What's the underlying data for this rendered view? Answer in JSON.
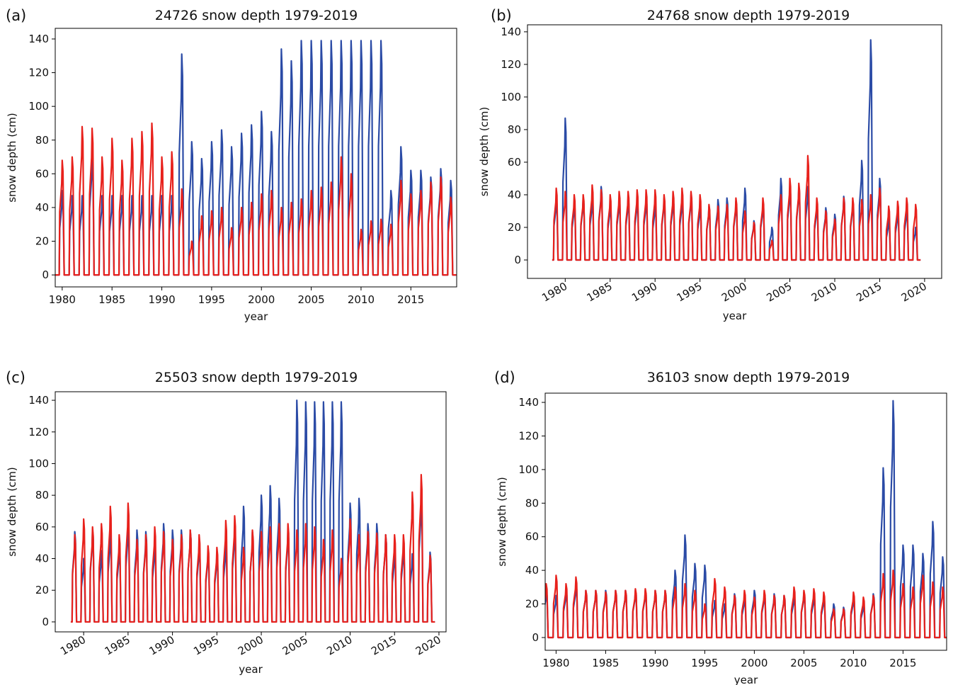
{
  "chart_data": [
    {
      "type": "line",
      "panel_label": "(a)",
      "title": "24726 snow depth 1979-2019",
      "x_label": "year",
      "y_label": "snow depth (cm)",
      "x": [
        1979,
        1980,
        1981,
        1982,
        1983,
        1984,
        1985,
        1986,
        1987,
        1988,
        1989,
        1990,
        1991,
        1992,
        1993,
        1994,
        1995,
        1996,
        1997,
        1998,
        1999,
        2000,
        2001,
        2002,
        2003,
        2004,
        2005,
        2006,
        2007,
        2008,
        2009,
        2010,
        2011,
        2012,
        2013,
        2014,
        2015,
        2016,
        2017,
        2018,
        2019
      ],
      "series": [
        {
          "color": "#2b4ba6",
          "values": [
            45,
            50,
            47,
            47,
            72,
            47,
            47,
            47,
            47,
            47,
            47,
            47,
            47,
            131,
            79,
            69,
            79,
            86,
            76,
            84,
            89,
            97,
            85,
            134,
            127,
            139,
            139,
            139,
            139,
            139,
            139,
            139,
            139,
            139,
            50,
            76,
            62,
            62,
            58,
            63,
            56
          ]
        },
        {
          "color": "#e8211c",
          "values": [
            72,
            68,
            70,
            88,
            87,
            70,
            81,
            68,
            81,
            85,
            90,
            70,
            73,
            51,
            20,
            35,
            38,
            40,
            28,
            40,
            43,
            48,
            50,
            40,
            43,
            45,
            50,
            52,
            55,
            70,
            60,
            27,
            32,
            33,
            30,
            56,
            48,
            50,
            55,
            58,
            46
          ]
        }
      ],
      "xlim": [
        1979.3,
        2019.6
      ],
      "xticks": [
        1980,
        1985,
        1990,
        1995,
        2000,
        2005,
        2010,
        2015
      ],
      "ylim": [
        -7.1,
        146.3
      ],
      "yticks": [
        0,
        20,
        40,
        60,
        80,
        100,
        120,
        140
      ],
      "rotate_xticks": false
    },
    {
      "type": "line",
      "panel_label": "(b)",
      "title": "24768 snow depth 1979-2019",
      "x_label": "year",
      "y_label": "snow depth (cm)",
      "x": [
        1979,
        1980,
        1981,
        1982,
        1983,
        1984,
        1985,
        1986,
        1987,
        1988,
        1989,
        1990,
        1991,
        1992,
        1993,
        1994,
        1995,
        1996,
        1997,
        1998,
        1999,
        2000,
        2001,
        2002,
        2003,
        2004,
        2005,
        2006,
        2007,
        2008,
        2009,
        2010,
        2011,
        2012,
        2013,
        2014,
        2015,
        2016,
        2017,
        2018,
        2019
      ],
      "series": [
        {
          "color": "#2b4ba6",
          "values": [
            38,
            87,
            35,
            38,
            38,
            45,
            35,
            38,
            38,
            38,
            38,
            35,
            38,
            38,
            38,
            40,
            34,
            33,
            37,
            38,
            36,
            44,
            24,
            35,
            20,
            50,
            45,
            45,
            45,
            34,
            32,
            28,
            39,
            36,
            61,
            135,
            50,
            25,
            30,
            32,
            20
          ]
        },
        {
          "color": "#e8211c",
          "values": [
            44,
            42,
            40,
            40,
            46,
            43,
            40,
            42,
            42,
            43,
            43,
            43,
            40,
            42,
            44,
            42,
            40,
            34,
            33,
            34,
            38,
            30,
            23,
            38,
            12,
            40,
            50,
            47,
            64,
            38,
            30,
            25,
            38,
            38,
            37,
            40,
            44,
            33,
            36,
            38,
            34
          ]
        }
      ],
      "xlim": [
        1975.8,
        2021.9
      ],
      "xticks": [
        1980,
        1985,
        1990,
        1995,
        2000,
        2005,
        2010,
        2015,
        2020
      ],
      "ylim": [
        -11.3,
        144.3
      ],
      "yticks": [
        0,
        20,
        40,
        60,
        80,
        100,
        120,
        140
      ],
      "rotate_xticks": true
    },
    {
      "type": "line",
      "panel_label": "(c)",
      "title": "25503 snow depth 1979-2019",
      "x_label": "year",
      "y_label": "snow depth (cm)",
      "x": [
        1979,
        1980,
        1981,
        1982,
        1983,
        1984,
        1985,
        1986,
        1987,
        1988,
        1989,
        1990,
        1991,
        1992,
        1993,
        1994,
        1995,
        1996,
        1997,
        1998,
        1999,
        2000,
        2001,
        2002,
        2003,
        2004,
        2005,
        2006,
        2007,
        2008,
        2009,
        2010,
        2011,
        2012,
        2013,
        2014,
        2015,
        2016,
        2017,
        2018,
        2019
      ],
      "series": [
        {
          "color": "#2b4ba6",
          "values": [
            57,
            40,
            58,
            45,
            57,
            48,
            63,
            58,
            57,
            50,
            62,
            58,
            58,
            58,
            50,
            45,
            43,
            50,
            60,
            73,
            57,
            80,
            86,
            78,
            58,
            140,
            139,
            139,
            139,
            139,
            139,
            75,
            78,
            62,
            62,
            55,
            45,
            48,
            43,
            80,
            44
          ]
        },
        {
          "color": "#e8211c",
          "values": [
            55,
            65,
            60,
            62,
            73,
            55,
            75,
            52,
            55,
            60,
            57,
            52,
            55,
            58,
            55,
            48,
            47,
            64,
            67,
            47,
            58,
            57,
            60,
            62,
            62,
            58,
            62,
            60,
            52,
            58,
            40,
            65,
            55,
            57,
            56,
            55,
            55,
            55,
            82,
            93,
            42
          ]
        }
      ],
      "xlim": [
        1976.8,
        2020.8
      ],
      "xticks": [
        1980,
        1985,
        1990,
        1995,
        2000,
        2005,
        2010,
        2015,
        2020
      ],
      "ylim": [
        -6.3,
        145.4
      ],
      "yticks": [
        0,
        20,
        40,
        60,
        80,
        100,
        120,
        140
      ],
      "rotate_xticks": true
    },
    {
      "type": "line",
      "panel_label": "(d)",
      "title": "36103 snow depth 1979-2019",
      "x_label": "year",
      "y_label": "snow depth (cm)",
      "x": [
        1979,
        1980,
        1981,
        1982,
        1983,
        1984,
        1985,
        1986,
        1987,
        1988,
        1989,
        1990,
        1991,
        1992,
        1993,
        1994,
        1995,
        1996,
        1997,
        1998,
        1999,
        2000,
        2001,
        2002,
        2003,
        2004,
        2005,
        2006,
        2007,
        2008,
        2009,
        2010,
        2011,
        2012,
        2013,
        2014,
        2015,
        2016,
        2017,
        2018,
        2019
      ],
      "series": [
        {
          "color": "#2b4ba6",
          "values": [
            28,
            25,
            28,
            32,
            28,
            28,
            28,
            28,
            28,
            28,
            28,
            28,
            28,
            40,
            61,
            44,
            43,
            22,
            20,
            26,
            24,
            28,
            26,
            26,
            25,
            25,
            27,
            25,
            24,
            20,
            18,
            24,
            20,
            26,
            101,
            141,
            55,
            55,
            50,
            69,
            48
          ]
        },
        {
          "color": "#e8211c",
          "values": [
            32,
            37,
            32,
            36,
            28,
            28,
            27,
            28,
            28,
            29,
            29,
            28,
            28,
            30,
            32,
            28,
            20,
            35,
            30,
            25,
            28,
            24,
            28,
            25,
            25,
            30,
            28,
            29,
            27,
            17,
            17,
            27,
            24,
            25,
            38,
            40,
            32,
            30,
            37,
            33,
            30
          ]
        }
      ],
      "xlim": [
        1978.9,
        2019.4
      ],
      "xticks": [
        1980,
        1985,
        1990,
        1995,
        2000,
        2005,
        2010,
        2015
      ],
      "ylim": [
        -7.6,
        145.5
      ],
      "yticks": [
        0,
        20,
        40,
        60,
        80,
        100,
        120,
        140
      ],
      "rotate_xticks": false
    }
  ]
}
